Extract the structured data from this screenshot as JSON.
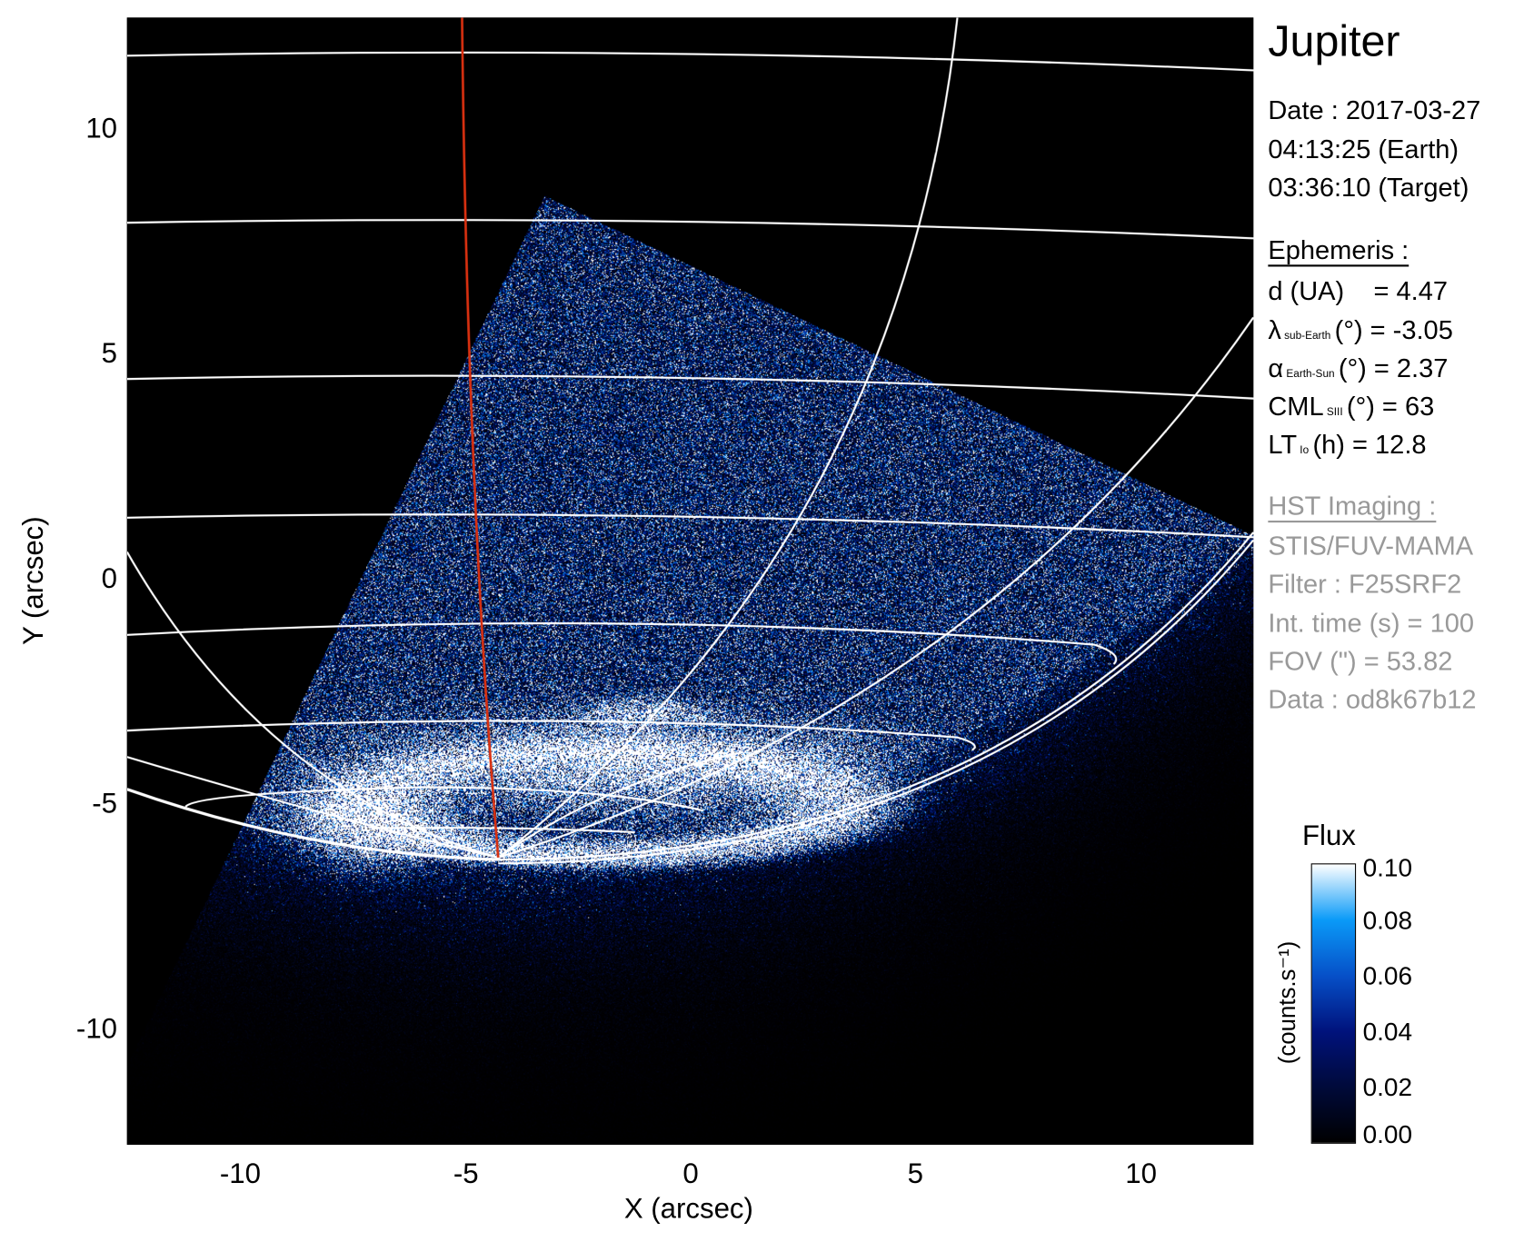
{
  "chart_data": {
    "type": "heatmap",
    "title": "Jupiter",
    "xlabel": "X (arcsec)",
    "ylabel": "Y (arcsec)",
    "xlim": [
      -12.5,
      12.5
    ],
    "ylim": [
      -12.5,
      12.5
    ],
    "xticks": [
      "-10",
      "-5",
      "0",
      "5",
      "10"
    ],
    "yticks": [
      "10",
      "5",
      "0",
      "-5",
      "-10"
    ],
    "overlay": "white latitude/longitude grid; one red meridian line",
    "colors": {
      "grid": "#ffffff",
      "meridian": "#d83010",
      "background": "#000000"
    },
    "colorbar": {
      "title": "Flux",
      "label": "(counts.s⁻¹)",
      "ticks": [
        "0.10",
        "0.08",
        "0.06",
        "0.04",
        "0.02",
        "0.00"
      ],
      "range": [
        0.0,
        0.1
      ],
      "colormap": [
        "#000000",
        "#000a3a",
        "#00127c",
        "#0650c8",
        "#0a9af8",
        "#ffffff"
      ]
    }
  },
  "info": {
    "date": "Date : 2017-03-27",
    "earth_time": "04:13:25 (Earth)",
    "target_time": "03:36:10 (Target)",
    "ephemeris_header": "Ephemeris :",
    "ephemeris": [
      {
        "main": "d (UA)",
        "sub": "",
        "rest": "    = 4.47"
      },
      {
        "main": "λ",
        "sub": "sub-Earth",
        "rest": "(°) = -3.05"
      },
      {
        "main": "α",
        "sub": "Earth-Sun",
        "rest": "(°) = 2.37"
      },
      {
        "main": "CML",
        "sub": "SIII",
        "rest": "(°) = 63"
      },
      {
        "main": "LT",
        "sub": "Io",
        "rest": "(h) = 12.8"
      }
    ],
    "hst_header": "HST Imaging :",
    "hst": [
      "STIS/FUV-MAMA",
      "Filter : F25SRF2",
      "Int. time (s) = 100",
      "FOV (\") = 53.82",
      "Data : od8k67b12"
    ]
  }
}
